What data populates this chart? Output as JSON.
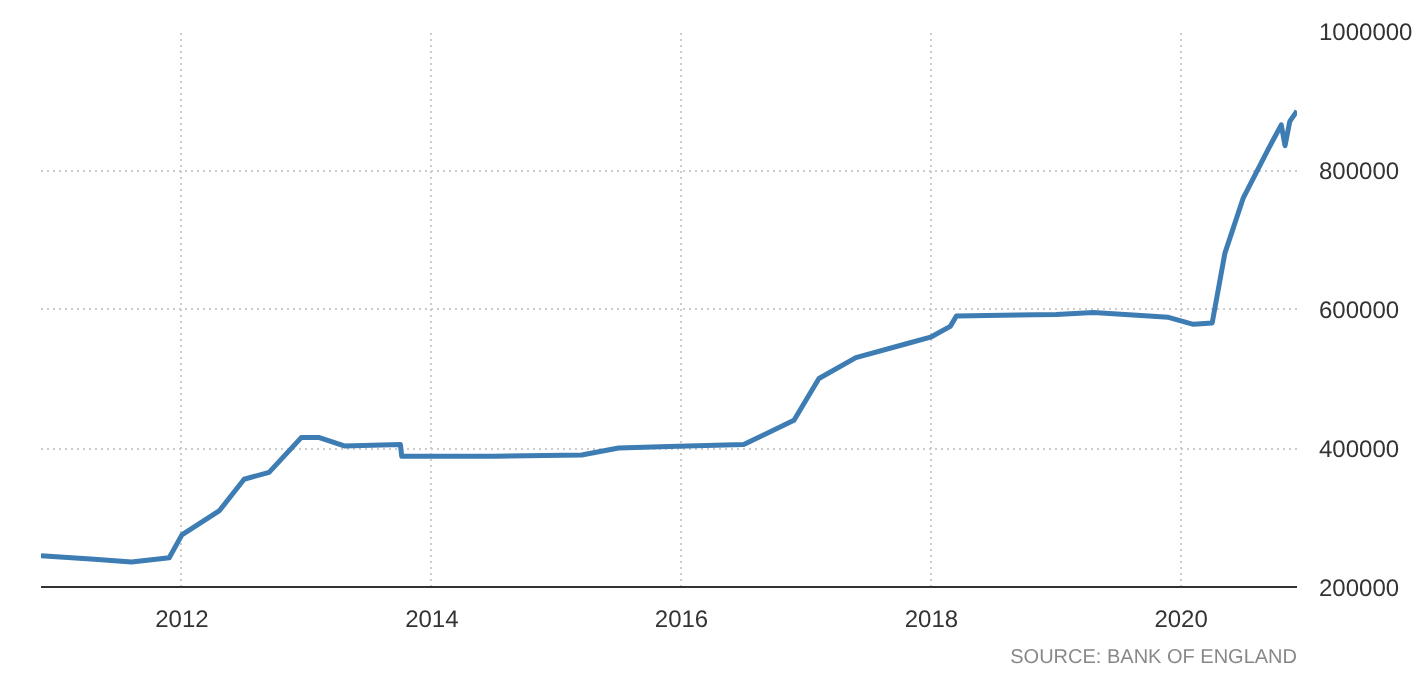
{
  "chart_data": {
    "type": "line",
    "x": [
      "2010-11-15",
      "2011-04-20",
      "2011-08-07",
      "2011-11-25",
      "2012-01-01",
      "2012-04-20",
      "2012-07-01",
      "2012-09-12",
      "2012-12-15",
      "2013-02-06",
      "2013-04-20",
      "2013-10-01",
      "2013-10-05",
      "2014-07-01",
      "2015-03-15",
      "2015-07-01",
      "2015-11-25",
      "2016-07-01",
      "2016-11-25",
      "2017-02-06",
      "2017-05-25",
      "2017-10-20",
      "2018-01-01",
      "2018-02-25",
      "2018-03-15",
      "2019-01-01",
      "2019-04-20",
      "2019-11-25",
      "2020-02-06",
      "2020-04-01",
      "2020-05-08",
      "2020-07-01",
      "2020-09-12",
      "2020-10-20",
      "2020-10-31",
      "2020-11-14",
      "2020-12-05"
    ],
    "series": [
      {
        "color": "#3d7db3",
        "values": [
          245000,
          240000,
          236000,
          242000,
          275000,
          310000,
          355000,
          365000,
          415000,
          415000,
          403000,
          405000,
          388000,
          388000,
          390000,
          400000,
          402000,
          405000,
          440000,
          500000,
          530000,
          550000,
          560000,
          575000,
          590000,
          592000,
          595000,
          588000,
          578000,
          580000,
          680000,
          760000,
          830000,
          865000,
          835000,
          870000,
          885000
        ]
      }
    ],
    "xlim": [
      "2010-11-15",
      "2020-12-05"
    ],
    "xticks": [
      "2012",
      "2014",
      "2016",
      "2018",
      "2020"
    ],
    "ylim": [
      200000,
      1000000
    ],
    "yticks": [
      200000,
      400000,
      600000,
      800000,
      1000000
    ],
    "grid": true,
    "marker": "none",
    "line_style": "solid",
    "annotations": [
      "SOURCE: BANK OF ENGLAND"
    ]
  }
}
